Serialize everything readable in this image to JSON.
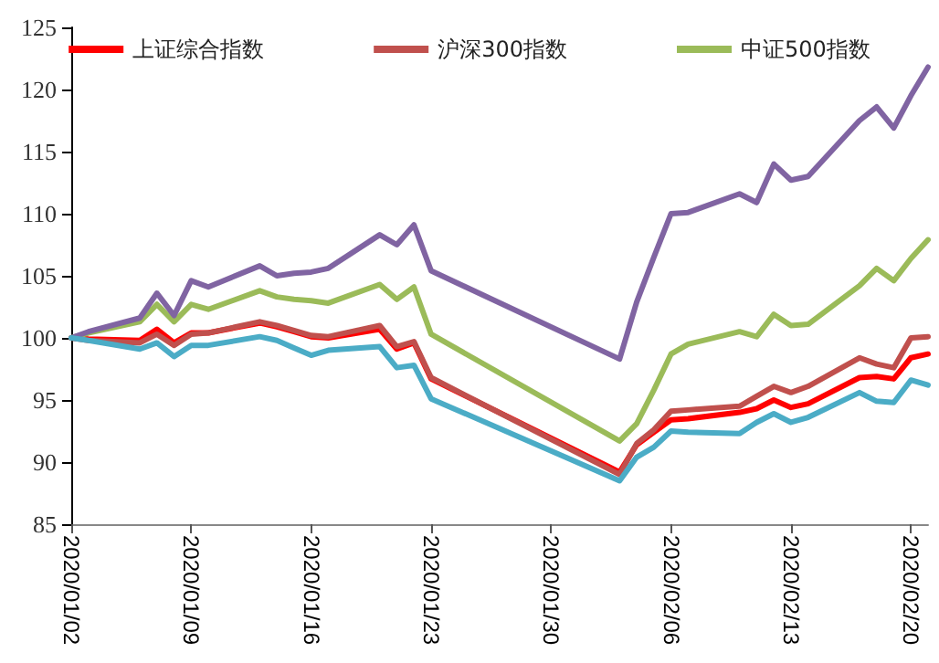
{
  "chart_data": {
    "type": "line",
    "x": [
      "2020-01-02",
      "2020-01-03",
      "2020-01-06",
      "2020-01-07",
      "2020-01-08",
      "2020-01-09",
      "2020-01-10",
      "2020-01-13",
      "2020-01-14",
      "2020-01-15",
      "2020-01-16",
      "2020-01-17",
      "2020-01-20",
      "2020-01-21",
      "2020-01-22",
      "2020-01-23",
      "2020-02-03",
      "2020-02-04",
      "2020-02-05",
      "2020-02-06",
      "2020-02-07",
      "2020-02-10",
      "2020-02-11",
      "2020-02-12",
      "2020-02-13",
      "2020-02-14",
      "2020-02-17",
      "2020-02-18",
      "2020-02-19",
      "2020-02-20",
      "2020-02-21"
    ],
    "series": [
      {
        "name": "上证综合指数",
        "color": "#ff0000",
        "values": [
          100,
          99.9,
          99.8,
          100.7,
          99.6,
          100.4,
          100.4,
          101.2,
          100.9,
          100.5,
          100.1,
          100.0,
          100.7,
          99.1,
          99.6,
          96.7,
          89.2,
          91.4,
          92.4,
          93.4,
          93.5,
          94.0,
          94.3,
          95.0,
          94.4,
          94.7,
          96.8,
          96.9,
          96.7,
          98.4,
          98.7
        ]
      },
      {
        "name": "沪深300指数",
        "color": "#c0504d",
        "values": [
          100,
          99.8,
          99.6,
          100.3,
          99.4,
          100.3,
          100.4,
          101.3,
          101.0,
          100.6,
          100.2,
          100.1,
          101.0,
          99.3,
          99.7,
          96.8,
          89.0,
          91.5,
          92.6,
          94.1,
          94.2,
          94.5,
          95.3,
          96.1,
          95.6,
          96.1,
          98.4,
          97.9,
          97.6,
          100.0,
          100.1
        ]
      },
      {
        "name": "中证500指数",
        "color": "#9bbb59",
        "values": [
          100,
          100.4,
          101.3,
          102.7,
          101.3,
          102.7,
          102.3,
          103.8,
          103.3,
          103.1,
          103.0,
          102.8,
          104.3,
          103.1,
          104.1,
          100.3,
          91.7,
          93.1,
          95.8,
          98.7,
          99.5,
          100.5,
          100.1,
          101.9,
          101.0,
          101.1,
          104.2,
          105.6,
          104.6,
          106.4,
          107.9
        ]
      },
      {
        "color": "#8064a2",
        "values": [
          100,
          100.5,
          101.6,
          103.6,
          101.8,
          104.6,
          104.1,
          105.8,
          105.0,
          105.2,
          105.3,
          105.6,
          108.3,
          107.5,
          109.1,
          105.4,
          98.3,
          102.9,
          106.5,
          110.0,
          110.1,
          111.6,
          110.9,
          114.0,
          112.7,
          113.0,
          117.5,
          118.6,
          116.9,
          119.5,
          121.8
        ]
      },
      {
        "color": "#4bacc6",
        "values": [
          100,
          99.8,
          99.1,
          99.6,
          98.5,
          99.4,
          99.4,
          100.1,
          99.8,
          99.2,
          98.6,
          99.0,
          99.3,
          97.6,
          97.8,
          95.1,
          88.5,
          90.4,
          91.2,
          92.5,
          92.4,
          92.3,
          93.2,
          93.9,
          93.2,
          93.6,
          95.6,
          94.9,
          94.8,
          96.6,
          96.2
        ]
      }
    ],
    "xlim": [
      "2020-01-02",
      "2020-02-21"
    ],
    "xticks": [
      {
        "value": "2020-01-02",
        "label": "2020/01/02"
      },
      {
        "value": "2020-01-09",
        "label": "2020/01/09"
      },
      {
        "value": "2020-01-16",
        "label": "2020/01/16"
      },
      {
        "value": "2020-01-23",
        "label": "2020/01/23"
      },
      {
        "value": "2020-01-30",
        "label": "2020/01/30"
      },
      {
        "value": "2020-02-06",
        "label": "2020/02/06"
      },
      {
        "value": "2020-02-13",
        "label": "2020/02/13"
      },
      {
        "value": "2020-02-20",
        "label": "2020/02/20"
      }
    ],
    "ylim": [
      85,
      125
    ],
    "yticks": [
      85,
      90,
      95,
      100,
      105,
      110,
      115,
      120,
      125
    ],
    "grid": false,
    "legend": "top",
    "marker": "none",
    "line_style": "solid"
  }
}
